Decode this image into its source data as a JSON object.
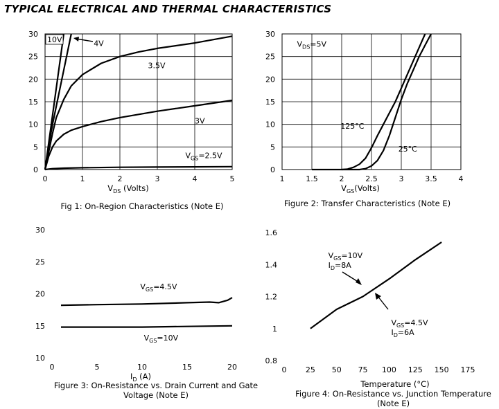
{
  "page": {
    "title": "TYPICAL ELECTRICAL AND THERMAL CHARACTERISTICS"
  },
  "chart_data": [
    {
      "type": "line",
      "caption": "Fig 1: On-Region Characteristics (Note E)",
      "xlabel_main": "V",
      "xlabel_sub": "DS",
      "xlabel_tail": " (Volts)",
      "ylabel": "",
      "xlim": [
        0,
        5
      ],
      "ylim": [
        0,
        30
      ],
      "xticks": [
        0,
        1,
        2,
        3,
        4,
        5
      ],
      "yticks": [
        0,
        5,
        10,
        15,
        20,
        25,
        30
      ],
      "grid": true,
      "series": [
        {
          "x": [
            0,
            0.1,
            0.2,
            0.3,
            0.4,
            0.5
          ],
          "y": [
            0,
            6,
            12,
            18,
            24,
            30
          ]
        },
        {
          "x": [
            0,
            0.1,
            0.2,
            0.3,
            0.4,
            0.5,
            0.6,
            0.7
          ],
          "y": [
            0,
            5.5,
            10,
            14,
            18,
            22,
            26,
            30
          ]
        },
        {
          "x": [
            0,
            0.1,
            0.2,
            0.3,
            0.5,
            0.7,
            1,
            1.5,
            2,
            2.5,
            3,
            4,
            5
          ],
          "y": [
            0,
            4,
            8,
            11.5,
            15.5,
            18.5,
            21,
            23.5,
            25,
            26,
            26.8,
            28,
            29.5
          ]
        },
        {
          "x": [
            0,
            0.1,
            0.2,
            0.3,
            0.5,
            0.7,
            1,
            1.5,
            2,
            3,
            4,
            5
          ],
          "y": [
            0,
            3,
            5,
            6.3,
            7.8,
            8.7,
            9.5,
            10.6,
            11.5,
            12.9,
            14.1,
            15.3
          ]
        },
        {
          "x": [
            0,
            0.2,
            0.5,
            1,
            2,
            3,
            4,
            5
          ],
          "y": [
            0,
            0.2,
            0.3,
            0.4,
            0.5,
            0.55,
            0.6,
            0.65
          ]
        }
      ],
      "annotations": [
        {
          "text": "10V",
          "x": 0.02,
          "y": 28.6
        },
        {
          "text": "4V",
          "x": 1.3,
          "y": 27.3
        },
        {
          "text": "3.5V",
          "x": 2.75,
          "y": 22.4
        },
        {
          "text": "3V",
          "x": 4.0,
          "y": 10.2
        },
        {
          "text": "V",
          "sub": "GS",
          "tail": "=2.5V",
          "x": 3.75,
          "y": 2.5
        }
      ]
    },
    {
      "type": "line",
      "caption": "Figure 2: Transfer Characteristics (Note E)",
      "xlabel_main": "V",
      "xlabel_sub": "GS",
      "xlabel_tail": "(Volts)",
      "ylabel": "",
      "xlim": [
        1,
        4
      ],
      "ylim": [
        0,
        30
      ],
      "xticks": [
        1,
        1.5,
        2,
        2.5,
        3,
        3.5,
        4
      ],
      "xtick_labels": [
        "1",
        "1.5",
        "2",
        "2.5",
        "3",
        "3.5",
        "4"
      ],
      "yticks": [
        0,
        5,
        10,
        15,
        20,
        25,
        30
      ],
      "grid": true,
      "series": [
        {
          "name": "125°C",
          "x": [
            1.5,
            2,
            2.1,
            2.2,
            2.3,
            2.4,
            2.5,
            2.6,
            2.7,
            2.8,
            2.9,
            3,
            3.1,
            3.2,
            3.3,
            3.4
          ],
          "y": [
            0,
            0,
            0.1,
            0.5,
            1.2,
            2.5,
            4.8,
            7.5,
            10,
            12.5,
            15,
            18,
            21,
            24,
            27,
            30
          ]
        },
        {
          "name": "25°C",
          "x": [
            2,
            2.3,
            2.4,
            2.5,
            2.6,
            2.7,
            2.8,
            2.9,
            3,
            3.1,
            3.2,
            3.3,
            3.4,
            3.5
          ],
          "y": [
            0,
            0,
            0.2,
            0.8,
            2,
            4.2,
            7.5,
            11.5,
            15.5,
            19,
            22,
            25,
            27.5,
            30
          ]
        }
      ],
      "annotations": [
        {
          "text": "V",
          "sub": "DS",
          "tail": "=5V",
          "x": 1.25,
          "y": 27.2
        },
        {
          "text": "125°C",
          "x": 1.98,
          "y": 9
        },
        {
          "text": "25°C",
          "x": 2.95,
          "y": 4.0
        }
      ]
    },
    {
      "type": "line",
      "caption": "Figure 3: On-Resistance vs. Drain Current and Gate Voltage (Note E)",
      "xlabel_main": "I",
      "xlabel_sub": "D",
      "xlabel_tail": " (A)",
      "ylabel": "",
      "xlim": [
        0,
        20
      ],
      "ylim": [
        10,
        30
      ],
      "xticks": [
        0,
        5,
        10,
        15,
        20
      ],
      "yticks": [
        10,
        15,
        20,
        25,
        30
      ],
      "grid": false,
      "series": [
        {
          "x": [
            1,
            5,
            10,
            15,
            17.5,
            18.5,
            19.5,
            20
          ],
          "y": [
            18.2,
            18.3,
            18.4,
            18.6,
            18.7,
            18.6,
            19,
            19.4
          ]
        },
        {
          "x": [
            1,
            5,
            10,
            15,
            20
          ],
          "y": [
            14.8,
            14.8,
            14.8,
            14.9,
            15.0
          ]
        }
      ],
      "annotations": [
        {
          "text": "V",
          "sub": "GS",
          "tail": "=4.5V",
          "x": 9.8,
          "y": 20.7
        },
        {
          "text": "V",
          "sub": "GS",
          "tail": "=10V",
          "x": 10.2,
          "y": 12.7
        }
      ]
    },
    {
      "type": "line",
      "caption": "Figure 4: On-Resistance vs. Junction Temperature (Note E)",
      "xlabel_main": "Temperature (°C)",
      "xlabel_sub": "",
      "xlabel_tail": "",
      "ylabel": "",
      "xlim": [
        0,
        175
      ],
      "ylim": [
        0.8,
        1.6
      ],
      "xticks": [
        0,
        25,
        50,
        75,
        100,
        125,
        150,
        175
      ],
      "yticks": [
        0.8,
        1,
        1.2,
        1.4,
        1.6
      ],
      "ytick_labels": [
        "0.8",
        "1",
        "1.2",
        "1.4",
        "1.6"
      ],
      "grid": false,
      "series": [
        {
          "x": [
            25,
            50,
            75,
            100,
            125,
            150
          ],
          "y": [
            1.0,
            1.12,
            1.2,
            1.31,
            1.43,
            1.54
          ]
        }
      ],
      "annotations": [
        {
          "text": "V",
          "sub": "GS",
          "tail": "=10V",
          "x": 42,
          "y": 1.44
        },
        {
          "text": "I",
          "sub": "D",
          "tail": "=8A",
          "x": 42,
          "y": 1.38
        },
        {
          "text": "V",
          "sub": "GS",
          "tail": "=4.5V",
          "x": 102,
          "y": 1.02
        },
        {
          "text": "I",
          "sub": "D",
          "tail": "=6A",
          "x": 102,
          "y": 0.96
        }
      ]
    }
  ]
}
